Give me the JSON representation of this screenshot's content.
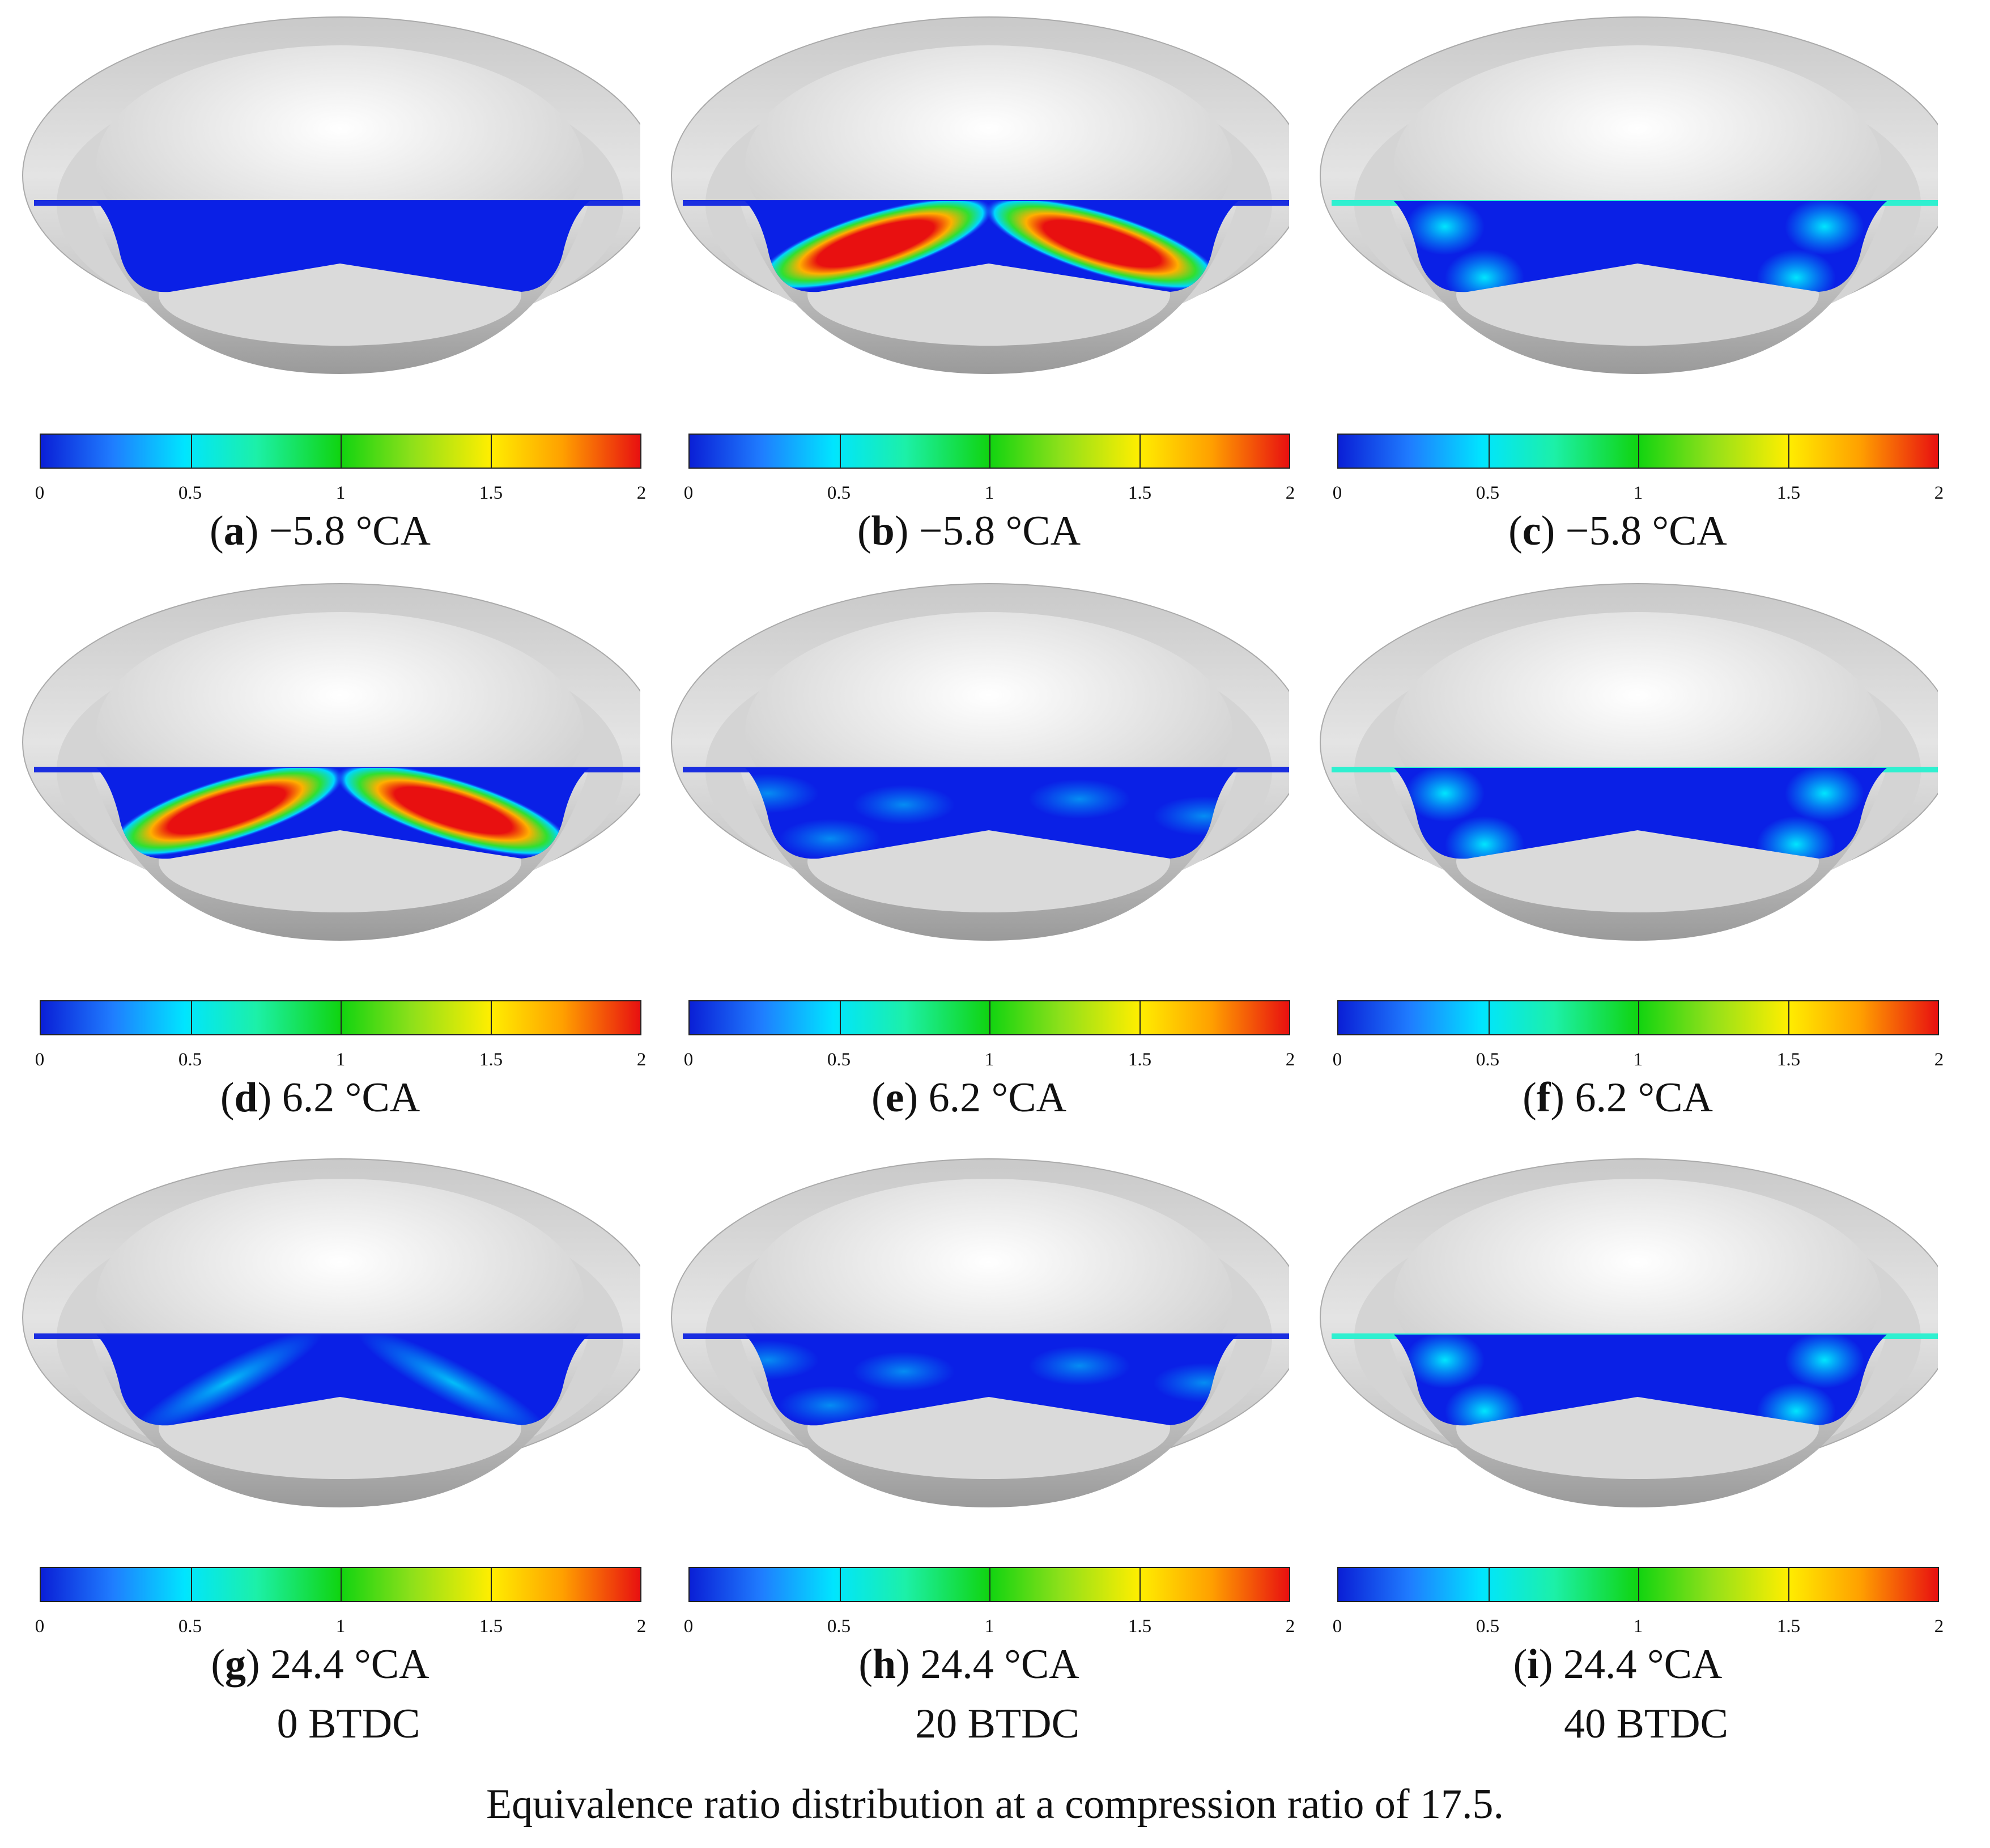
{
  "colorbar": {
    "ticks": [
      "0",
      "0.5",
      "1",
      "1.5",
      "2"
    ],
    "min": 0,
    "max": 2
  },
  "panels": [
    {
      "letter": "a",
      "label": "−5.8 °CA",
      "pattern": "blank"
    },
    {
      "letter": "b",
      "label": "−5.8 °CA",
      "pattern": "jets"
    },
    {
      "letter": "c",
      "label": "−5.8 °CA",
      "pattern": "spots"
    },
    {
      "letter": "d",
      "label": "6.2 °CA",
      "pattern": "jets"
    },
    {
      "letter": "e",
      "label": "6.2 °CA",
      "pattern": "diffuse"
    },
    {
      "letter": "f",
      "label": "6.2 °CA",
      "pattern": "spots"
    },
    {
      "letter": "g",
      "label": "24.4 °CA",
      "pattern": "streaks"
    },
    {
      "letter": "h",
      "label": "24.4 °CA",
      "pattern": "diffuse"
    },
    {
      "letter": "i",
      "label": "24.4 °CA",
      "pattern": "spots"
    }
  ],
  "subcaptions": [
    "0 BTDC",
    "20 BTDC",
    "40 BTDC"
  ],
  "figure_caption": "Equivalence ratio distribution at a compression ratio of 17.5."
}
